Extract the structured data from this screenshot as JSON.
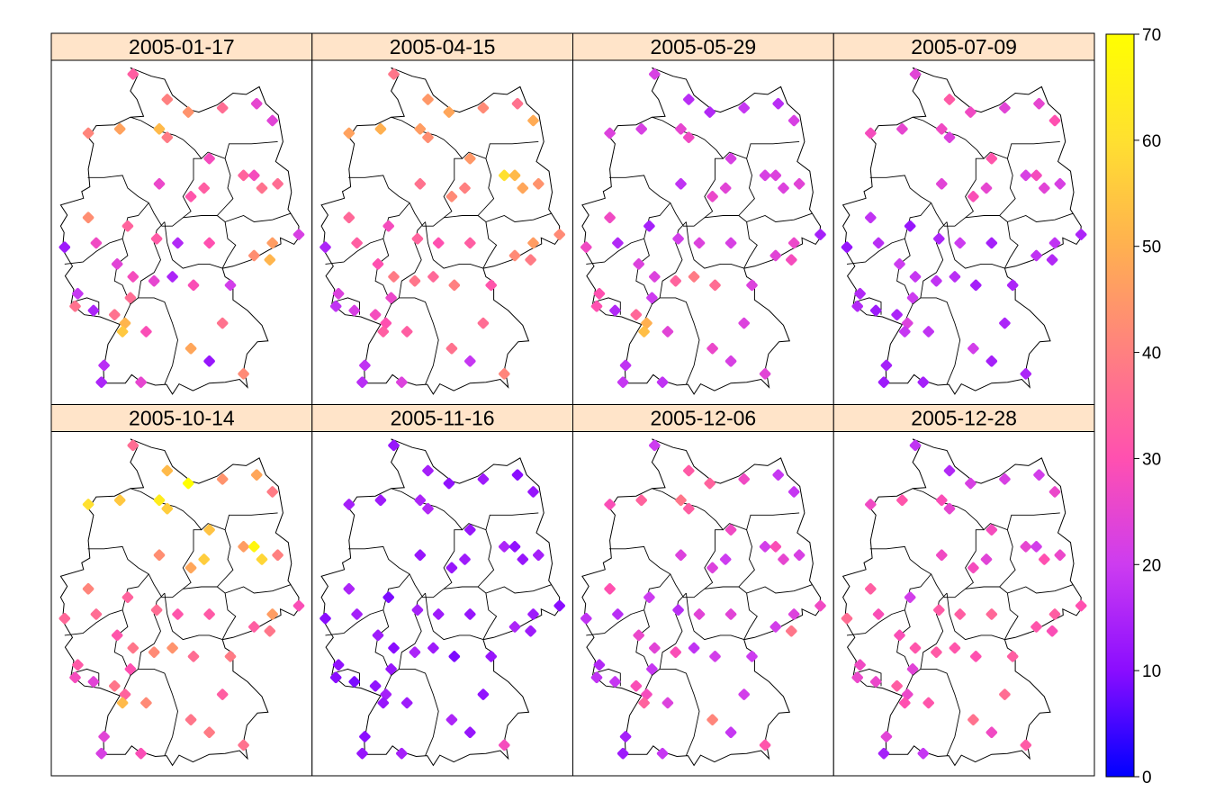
{
  "chart_data": {
    "type": "scatter",
    "layout": "small-multiples 4x2 map panels with stations colored by value",
    "panels": [
      {
        "title": "2005-01-17"
      },
      {
        "title": "2005-04-15"
      },
      {
        "title": "2005-05-29"
      },
      {
        "title": "2005-07-09"
      },
      {
        "title": "2005-10-14"
      },
      {
        "title": "2005-11-16"
      },
      {
        "title": "2005-12-06"
      },
      {
        "title": "2005-12-28"
      }
    ],
    "stations": [
      {
        "lon": 8.7,
        "lat": 54.9,
        "values": [
          33,
          38,
          22,
          24,
          36,
          12,
          20,
          18
        ]
      },
      {
        "lon": 10.0,
        "lat": 54.3,
        "values": [
          40,
          45,
          17,
          32,
          52,
          14,
          32,
          16
        ]
      },
      {
        "lon": 10.8,
        "lat": 54.0,
        "values": [
          44,
          48,
          16,
          27,
          70,
          11,
          34,
          22
        ]
      },
      {
        "lon": 12.1,
        "lat": 54.1,
        "values": [
          36,
          42,
          19,
          24,
          44,
          13,
          27,
          22
        ]
      },
      {
        "lon": 13.4,
        "lat": 54.2,
        "values": [
          25,
          37,
          17,
          25,
          48,
          10,
          19,
          21
        ]
      },
      {
        "lon": 14.0,
        "lat": 53.8,
        "values": [
          24,
          49,
          22,
          30,
          39,
          12,
          19,
          26
        ]
      },
      {
        "lon": 7.0,
        "lat": 53.5,
        "values": [
          41,
          47,
          23,
          28,
          60,
          14,
          29,
          27
        ]
      },
      {
        "lon": 8.2,
        "lat": 53.6,
        "values": [
          47,
          50,
          22,
          25,
          55,
          13,
          34,
          31
        ]
      },
      {
        "lon": 9.7,
        "lat": 53.6,
        "values": [
          52,
          46,
          25,
          27,
          64,
          15,
          38,
          29
        ]
      },
      {
        "lon": 10.0,
        "lat": 53.4,
        "values": [
          39,
          43,
          27,
          23,
          56,
          16,
          33,
          25
        ]
      },
      {
        "lon": 11.6,
        "lat": 52.9,
        "values": [
          28,
          45,
          22,
          31,
          54,
          12,
          27,
          28
        ]
      },
      {
        "lon": 12.9,
        "lat": 52.5,
        "values": [
          34,
          60,
          22,
          22,
          46,
          15,
          21,
          25
        ]
      },
      {
        "lon": 13.3,
        "lat": 52.5,
        "values": [
          28,
          52,
          23,
          28,
          67,
          11,
          29,
          21
        ]
      },
      {
        "lon": 13.6,
        "lat": 52.2,
        "values": [
          37,
          48,
          23,
          24,
          58,
          12,
          25,
          30
        ]
      },
      {
        "lon": 14.2,
        "lat": 52.3,
        "values": [
          36,
          44,
          24,
          22,
          40,
          14,
          22,
          26
        ]
      },
      {
        "lon": 10.9,
        "lat": 52.0,
        "values": [
          31,
          42,
          26,
          29,
          48,
          12,
          23,
          28
        ]
      },
      {
        "lon": 11.4,
        "lat": 52.2,
        "values": [
          33,
          40,
          24,
          25,
          56,
          13,
          20,
          24
        ]
      },
      {
        "lon": 9.7,
        "lat": 52.3,
        "values": [
          26,
          37,
          18,
          24,
          43,
          12,
          23,
          27
        ]
      },
      {
        "lon": 7.0,
        "lat": 51.5,
        "values": [
          43,
          35,
          27,
          18,
          41,
          15,
          30,
          33
        ]
      },
      {
        "lon": 8.5,
        "lat": 51.3,
        "values": [
          34,
          28,
          14,
          12,
          34,
          9,
          20,
          21
        ]
      },
      {
        "lon": 9.6,
        "lat": 51.0,
        "values": [
          32,
          34,
          21,
          15,
          36,
          14,
          17,
          32
        ]
      },
      {
        "lon": 10.4,
        "lat": 50.9,
        "values": [
          16,
          30,
          23,
          20,
          31,
          13,
          24,
          33
        ]
      },
      {
        "lon": 11.6,
        "lat": 50.9,
        "values": [
          30,
          33,
          22,
          14,
          32,
          12,
          24,
          35
        ]
      },
      {
        "lon": 13.3,
        "lat": 50.6,
        "values": [
          43,
          42,
          24,
          18,
          33,
          15,
          21,
          31
        ]
      },
      {
        "lon": 14.0,
        "lat": 50.9,
        "values": [
          46,
          46,
          26,
          18,
          46,
          13,
          23,
          33
        ]
      },
      {
        "lon": 13.9,
        "lat": 50.5,
        "values": [
          51,
          39,
          28,
          16,
          38,
          13,
          38,
          29
        ]
      },
      {
        "lon": 15.0,
        "lat": 51.1,
        "values": [
          22,
          42,
          14,
          15,
          29,
          10,
          27,
          30
        ]
      },
      {
        "lon": 6.1,
        "lat": 50.8,
        "values": [
          13,
          15,
          27,
          12,
          35,
          10,
          18,
          36
        ]
      },
      {
        "lon": 7.3,
        "lat": 50.9,
        "values": [
          27,
          33,
          16,
          17,
          36,
          14,
          17,
          29
        ]
      },
      {
        "lon": 8.1,
        "lat": 50.4,
        "values": [
          24,
          30,
          23,
          20,
          31,
          13,
          26,
          29
        ]
      },
      {
        "lon": 8.7,
        "lat": 50.1,
        "values": [
          28,
          39,
          23,
          19,
          38,
          10,
          24,
          31
        ]
      },
      {
        "lon": 9.5,
        "lat": 50.0,
        "values": [
          25,
          38,
          34,
          18,
          42,
          15,
          29,
          32
        ]
      },
      {
        "lon": 10.2,
        "lat": 50.1,
        "values": [
          15,
          35,
          39,
          17,
          44,
          13,
          18,
          31
        ]
      },
      {
        "lon": 11.0,
        "lat": 49.9,
        "values": [
          29,
          40,
          36,
          14,
          36,
          9,
          21,
          30
        ]
      },
      {
        "lon": 12.4,
        "lat": 49.9,
        "values": [
          21,
          31,
          23,
          15,
          39,
          12,
          20,
          33
        ]
      },
      {
        "lon": 6.6,
        "lat": 49.7,
        "values": [
          19,
          23,
          30,
          16,
          32,
          11,
          16,
          27
        ]
      },
      {
        "lon": 7.2,
        "lat": 49.3,
        "values": [
          15,
          22,
          16,
          13,
          24,
          9,
          19,
          26
        ]
      },
      {
        "lon": 8.4,
        "lat": 49.0,
        "values": [
          51,
          30,
          50,
          23,
          34,
          14,
          28,
          26
        ]
      },
      {
        "lon": 8.6,
        "lat": 49.6,
        "values": [
          36,
          26,
          20,
          20,
          30,
          12,
          19,
          24
        ]
      },
      {
        "lon": 8.0,
        "lat": 49.2,
        "values": [
          37,
          28,
          35,
          15,
          38,
          11,
          29,
          33
        ]
      },
      {
        "lon": 8.3,
        "lat": 48.8,
        "values": [
          55,
          33,
          53,
          19,
          52,
          12,
          34,
          30
        ]
      },
      {
        "lon": 6.5,
        "lat": 49.4,
        "values": [
          37,
          18,
          30,
          16,
          28,
          10,
          18,
          26
        ]
      },
      {
        "lon": 7.6,
        "lat": 48.0,
        "values": [
          17,
          18,
          18,
          14,
          24,
          10,
          14,
          24
        ]
      },
      {
        "lon": 9.2,
        "lat": 48.8,
        "values": [
          29,
          33,
          24,
          18,
          42,
          13,
          23,
          31
        ]
      },
      {
        "lon": 10.9,
        "lat": 48.4,
        "values": [
          48,
          37,
          26,
          21,
          38,
          15,
          41,
          37
        ]
      },
      {
        "lon": 12.1,
        "lat": 49.0,
        "values": [
          37,
          36,
          23,
          15,
          33,
          11,
          21,
          36
        ]
      },
      {
        "lon": 11.6,
        "lat": 48.1,
        "values": [
          12,
          19,
          22,
          14,
          39,
          12,
          19,
          27
        ]
      },
      {
        "lon": 12.9,
        "lat": 47.8,
        "values": [
          42,
          41,
          24,
          15,
          37,
          28,
          31,
          32
        ]
      },
      {
        "lon": 9.0,
        "lat": 47.6,
        "values": [
          25,
          23,
          18,
          14,
          29,
          14,
          19,
          19
        ]
      },
      {
        "lon": 7.5,
        "lat": 47.6,
        "values": [
          15,
          17,
          19,
          13,
          22,
          12,
          13,
          14
        ]
      }
    ],
    "colorbar": {
      "ticks": [
        0,
        10,
        20,
        30,
        40,
        50,
        60,
        70
      ],
      "range": [
        0,
        70
      ],
      "colors": [
        "#0000ff",
        "#8a0dff",
        "#cd3cf0",
        "#ff50b0",
        "#ff8080",
        "#ffb050",
        "#ffe030",
        "#ffff00"
      ]
    },
    "strip_color": "#ffe4c9"
  }
}
